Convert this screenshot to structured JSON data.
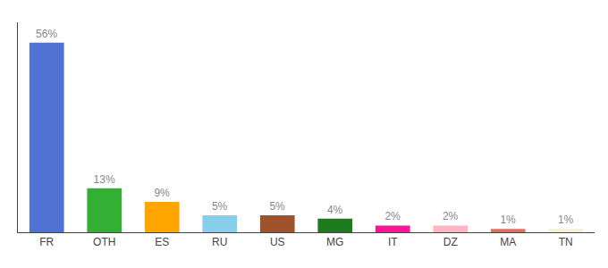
{
  "chart_data": {
    "type": "bar",
    "categories": [
      "FR",
      "OTH",
      "ES",
      "RU",
      "US",
      "MG",
      "IT",
      "DZ",
      "MA",
      "TN"
    ],
    "values": [
      56,
      13,
      9,
      5,
      5,
      4,
      2,
      2,
      1,
      1
    ],
    "value_labels": [
      "56%",
      "13%",
      "9%",
      "5%",
      "5%",
      "4%",
      "2%",
      "2%",
      "1%",
      "1%"
    ],
    "data_labels": true,
    "colors": [
      "#4f72d4",
      "#33b033",
      "#ffa500",
      "#87ceeb",
      "#a0522d",
      "#1e7a1e",
      "#ff1493",
      "#ffb6c1",
      "#e07060",
      "#f5f0d8"
    ],
    "ylim": [
      0,
      62
    ],
    "grid": false,
    "tick_labels": "x"
  }
}
